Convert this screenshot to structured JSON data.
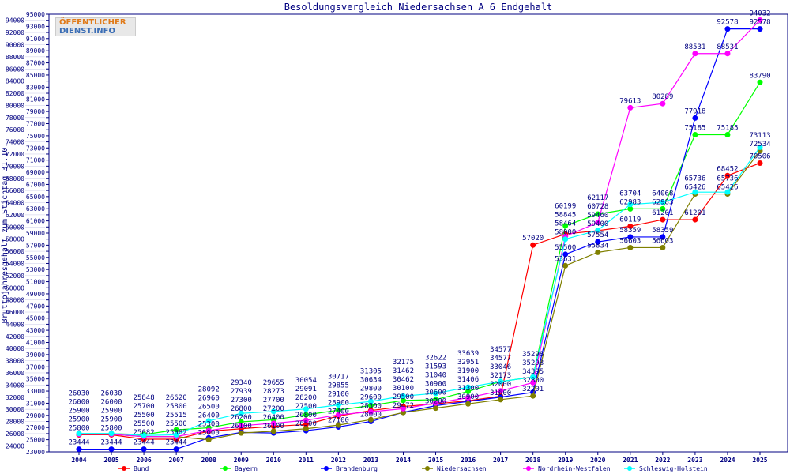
{
  "logo_text": [
    "ÖFFENTLICHER",
    "DIENST.INFO"
  ],
  "chart_data": {
    "type": "line",
    "title": "Besoldungsvergleich Niedersachsen A 6 Endgehalt",
    "xlabel": "",
    "ylabel": "Bruttojahresgehalt zum Stichtag 31.10.",
    "ylim": [
      23000,
      95000
    ],
    "ystep": 1000,
    "grid": false,
    "legend_position": "bottom",
    "x": [
      "2004",
      "2005",
      "2006",
      "2007",
      "2008",
      "2009",
      "2010",
      "2011",
      "2012",
      "2013",
      "2014",
      "2015",
      "2016",
      "2017",
      "2018",
      "2019",
      "2020",
      "2021",
      "2022",
      "2023",
      "2024",
      "2025"
    ],
    "series": [
      {
        "name": "Bund",
        "color": "#ff0000",
        "values": [
          25800,
          25800,
          25082,
          25082,
          26400,
          26800,
          27200,
          27500,
          28900,
          29800,
          30462,
          30900,
          31406,
          32173,
          57020,
          58845,
          59400,
          60119,
          61201,
          61201,
          68452,
          70506
        ]
      },
      {
        "name": "Bayern",
        "color": "#00ff00",
        "values": [
          26000,
          26000,
          25848,
          26620,
          26960,
          27939,
          28273,
          29091,
          29855,
          30634,
          31462,
          31593,
          32951,
          34577,
          35298,
          60199,
          62117,
          62983,
          62983,
          75185,
          75185,
          83790
        ]
      },
      {
        "name": "Brandenburg",
        "color": "#0000ff",
        "values": [
          23444,
          23444,
          23444,
          23444,
          25300,
          26200,
          26100,
          26500,
          27100,
          28000,
          29500,
          30600,
          31300,
          32000,
          32800,
          55500,
          57554,
          58359,
          58359,
          77918,
          92578,
          92578
        ]
      },
      {
        "name": "Niedersachsen",
        "color": "#808000",
        "values": [
          25900,
          25900,
          25500,
          25500,
          25000,
          26100,
          26400,
          26800,
          27400,
          28300,
          29472,
          30200,
          30900,
          31600,
          32201,
          53631,
          55834,
          56603,
          56603,
          65426,
          65426,
          72534
        ]
      },
      {
        "name": "Nordrhein-Westfalen",
        "color": "#ff00ff",
        "values": [
          25900,
          25900,
          25500,
          25515,
          26500,
          27300,
          27700,
          28200,
          29100,
          29600,
          30100,
          31040,
          31900,
          33046,
          34395,
          58464,
          60728,
          79613,
          80289,
          88531,
          88531,
          94032
        ]
      },
      {
        "name": "Schleswig-Holstein",
        "color": "#00ffff",
        "values": [
          26030,
          26030,
          25700,
          25800,
          28092,
          29340,
          29655,
          30054,
          30717,
          31305,
          32175,
          32622,
          33639,
          34577,
          35298,
          58000,
          59460,
          63704,
          64068,
          65736,
          65736,
          73113
        ]
      }
    ]
  }
}
